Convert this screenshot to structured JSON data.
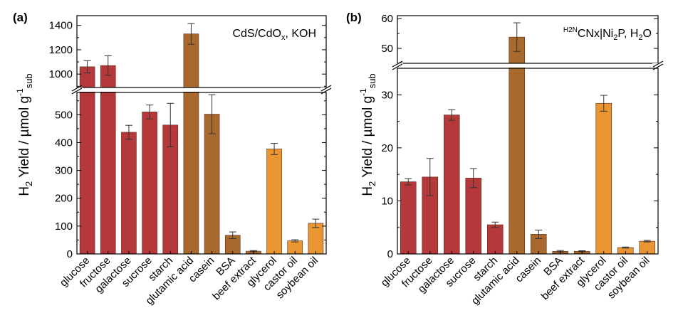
{
  "colors": {
    "sugar": "#b5383a",
    "protein": "#a8692c",
    "fat": "#e89532",
    "axis": "#000000"
  },
  "chart_data": [
    {
      "type": "bar",
      "panel_label": "(a)",
      "annotation": {
        "main": "CdS/CdO",
        "sub": "x",
        "rest": ", KOH"
      },
      "ylabel": {
        "pre": "H",
        "pre_sub": "2",
        "mid": " Yield / µmol g",
        "sup": "-1",
        "sub": "sub"
      },
      "categories": [
        "glucose",
        "fructose",
        "galactose",
        "sucrose",
        "starch",
        "glutamic acid",
        "casein",
        "BSA",
        "beef extract",
        "glycerol",
        "castor oil",
        "soybean oil"
      ],
      "values": [
        1060,
        1070,
        437,
        510,
        463,
        1330,
        502,
        67,
        10,
        377,
        47,
        110
      ],
      "errors": [
        50,
        80,
        25,
        25,
        78,
        85,
        70,
        12,
        2,
        20,
        4,
        15
      ],
      "groups": [
        "sugar",
        "sugar",
        "sugar",
        "sugar",
        "sugar",
        "protein",
        "protein",
        "protein",
        "protein",
        "fat",
        "fat",
        "fat"
      ],
      "axis_break": {
        "lower_ylim": [
          0,
          580
        ],
        "upper_ylim": [
          890,
          1480
        ]
      },
      "lower_ticks": [
        0,
        100,
        200,
        300,
        400,
        500
      ],
      "upper_ticks": [
        1000,
        1200,
        1400
      ]
    },
    {
      "type": "bar",
      "panel_label": "(b)",
      "annotation": {
        "sup": "H2N",
        "main": "CNx|Ni",
        "sub": "2",
        "rest": "P, H",
        "sub2": "2",
        "rest2": "O"
      },
      "ylabel": {
        "pre": "H",
        "pre_sub": "2",
        "mid": " Yield / µmol g",
        "sup": "-1",
        "sub": "sub"
      },
      "categories": [
        "glucose",
        "fructose",
        "galactose",
        "sucrose",
        "starch",
        "glutamic acid",
        "casein",
        "BSA",
        "beef extract",
        "glycerol",
        "castor oil",
        "soybean oil"
      ],
      "values": [
        13.6,
        14.5,
        26.2,
        14.3,
        5.5,
        53.8,
        3.7,
        0.5,
        0.5,
        28.4,
        1.2,
        2.4
      ],
      "errors": [
        0.6,
        3.5,
        1.0,
        1.8,
        0.5,
        4.8,
        0.8,
        0.15,
        0.1,
        1.5,
        0.1,
        0.15
      ],
      "groups": [
        "sugar",
        "sugar",
        "sugar",
        "sugar",
        "sugar",
        "protein",
        "protein",
        "protein",
        "protein",
        "fat",
        "fat",
        "fat"
      ],
      "axis_break": {
        "lower_ylim": [
          0,
          35
        ],
        "upper_ylim": [
          45,
          61
        ]
      },
      "lower_ticks": [
        0,
        10,
        20,
        30
      ],
      "upper_ticks": [
        50,
        60
      ]
    }
  ]
}
